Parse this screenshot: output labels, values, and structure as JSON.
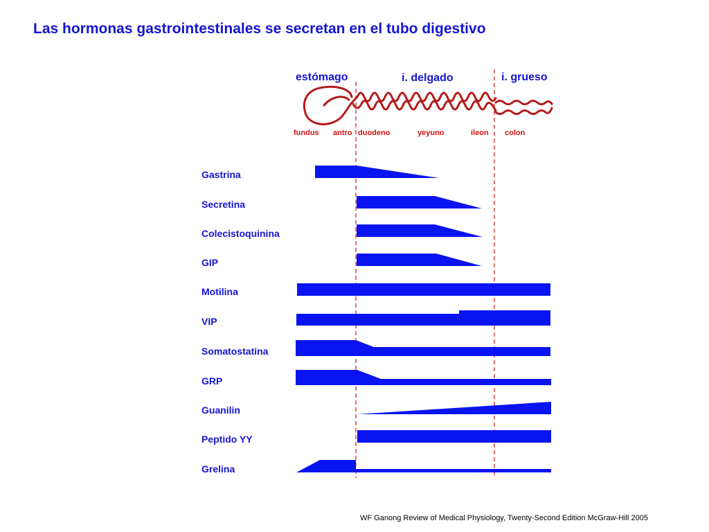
{
  "title": "Las hormonas gastrointestinales se secretan en el tubo digestivo",
  "regions": {
    "stomach": "estómago",
    "small_intestine": "i. delgado",
    "large_intestine": "i. grueso"
  },
  "segments": [
    "fundus",
    "antro",
    "duodeno",
    "yeyuno",
    "ileon",
    "colon"
  ],
  "hormones": [
    "Gastrina",
    "Secretina",
    "Colecistoquinina",
    "GIP",
    "Motilina",
    "VIP",
    "Somatostatina",
    "GRP",
    "Guanilin",
    "Peptido YY",
    "Grelina"
  ],
  "source": "WF Ganong Review of Medical Physiology, Twenty-Second Edition McGraw-Hill 2005",
  "colors": {
    "blue": "#1414d2",
    "red": "#d21414",
    "bar": "#0a14f0",
    "gut": "#b51a1a"
  },
  "icons": {
    "gut": "digestive-tract-outline-icon"
  }
}
